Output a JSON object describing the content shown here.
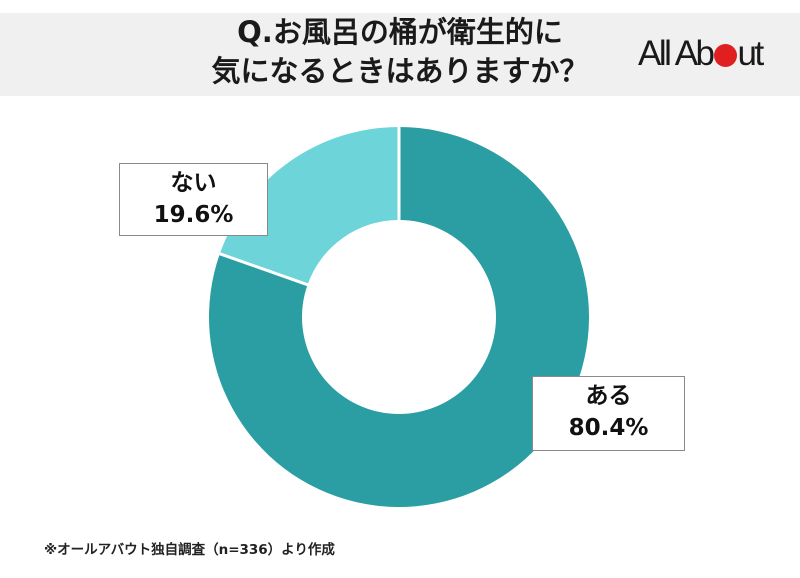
{
  "header": {
    "title_line1": "Q.お風呂の桶が衛生的に",
    "title_line2": "気になるときはありますか？",
    "logo_text_before": "All Ab",
    "logo_text_after": "ut",
    "logo_dot_color": "#e02020",
    "background": "#f0f0f0"
  },
  "labels": {
    "no": {
      "name": "ない",
      "value": "19.6%"
    },
    "yes": {
      "name": "ある",
      "value": "80.4%"
    }
  },
  "footnote": "※オールアバウト独自調査（n=336）より作成",
  "colors": {
    "yes": "#2a9ea3",
    "no": "#6dd5da",
    "separator": "#ffffff"
  },
  "chart_data": {
    "type": "pie",
    "subtype": "donut",
    "title": "Q.お風呂の桶が衛生的に気になるときはありますか？",
    "categories": [
      "ある",
      "ない"
    ],
    "values": [
      80.4,
      19.6
    ],
    "unit": "%",
    "colors": [
      "#2a9ea3",
      "#6dd5da"
    ],
    "start_angle": "12 o'clock, clockwise",
    "sample_size": "n=336",
    "source": "※オールアバウト独自調査（n=336）より作成",
    "legend": "none (data labels in boxes)",
    "grid": false
  }
}
